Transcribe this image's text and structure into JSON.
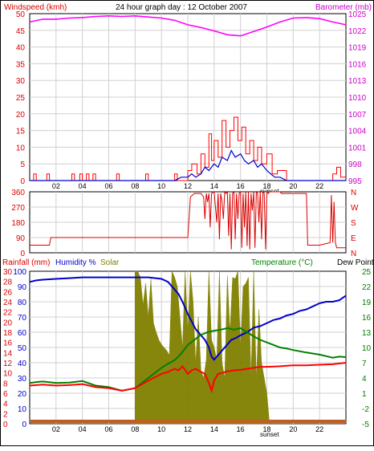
{
  "header": {
    "title": "24 hour graph day : 12 October 2007",
    "left_label": "Windspeed (kmh)",
    "right_label": "Barometer (mb)"
  },
  "colors": {
    "windspeed": "#ff0000",
    "wind_gust": "#ff0000",
    "wind_avg": "#0000cc",
    "barometer": "#ff00ff",
    "direction": "#dd0000",
    "rainfall": "#dd0000",
    "humidity": "#0000cc",
    "solar": "#808000",
    "temperature": "#008000",
    "dewpoint": "#ff0000",
    "grid": "#d0d0d0"
  },
  "time_axis": {
    "ticks": [
      "02",
      "04",
      "06",
      "08",
      "10",
      "12",
      "14",
      "16",
      "18",
      "20",
      "22"
    ],
    "sunset_label": "sunset",
    "sunset_hour": 18.2
  },
  "chart_data": [
    {
      "type": "line",
      "name": "wind-barometer",
      "left_axis": {
        "label": "Windspeed (kmh)",
        "ticks": [
          "0",
          "5",
          "10",
          "15",
          "20",
          "25",
          "30",
          "35",
          "40",
          "45",
          "50"
        ],
        "ylim": [
          0,
          50
        ]
      },
      "right_axis": {
        "label": "Barometer (mb)",
        "ticks": [
          "995",
          "998",
          "1001",
          "1004",
          "1007",
          "1010",
          "1013",
          "1016",
          "1019",
          "1022",
          "1025"
        ],
        "ylim": [
          995,
          1025
        ]
      },
      "series": [
        {
          "kind": "barometer",
          "x": [
            0,
            1,
            2,
            3,
            4,
            5,
            6,
            7,
            8,
            9,
            10,
            11,
            12,
            13,
            14,
            15,
            16,
            17,
            18,
            19,
            20,
            21,
            22,
            23,
            24
          ],
          "y": [
            1023.5,
            1024.0,
            1024.0,
            1024.2,
            1024.3,
            1024.5,
            1024.6,
            1024.5,
            1024.6,
            1024.4,
            1024.2,
            1023.8,
            1023.0,
            1022.5,
            1021.9,
            1021.2,
            1021.0,
            1021.8,
            1022.6,
            1023.5,
            1024.2,
            1024.3,
            1024.1,
            1023.5,
            1023.0
          ]
        },
        {
          "kind": "wind_gust",
          "x": [
            0,
            0.3,
            0.3,
            0.5,
            0.5,
            1.3,
            1.3,
            1.5,
            1.5,
            3.2,
            3.2,
            3.4,
            3.4,
            3.8,
            3.8,
            4.0,
            4.0,
            4.3,
            4.3,
            4.5,
            4.5,
            4.8,
            4.8,
            5.0,
            5.0,
            6.6,
            6.6,
            6.8,
            6.8,
            8.8,
            8.8,
            9.0,
            9.0,
            11.0,
            11.0,
            11.2,
            11.2,
            12.0,
            12.0,
            12.3,
            12.3,
            12.7,
            12.7,
            13.0,
            13.0,
            13.3,
            13.3,
            13.6,
            13.6,
            13.8,
            13.8,
            14.0,
            14.0,
            14.3,
            14.3,
            14.6,
            14.6,
            14.9,
            14.9,
            15.2,
            15.2,
            15.5,
            15.5,
            15.8,
            15.8,
            16.1,
            16.1,
            16.4,
            16.4,
            16.7,
            16.7,
            17.0,
            17.0,
            17.3,
            17.3,
            17.6,
            17.6,
            18.0,
            18.0,
            18.4,
            18.4,
            18.8,
            18.8,
            19.5,
            19.5,
            23.0,
            23.0,
            23.3,
            23.3,
            23.6,
            23.6,
            24
          ],
          "y": [
            0,
            0,
            2,
            2,
            0,
            0,
            2,
            2,
            0,
            0,
            2,
            2,
            0,
            0,
            2,
            2,
            0,
            0,
            2,
            2,
            0,
            0,
            2,
            2,
            0,
            0,
            2,
            2,
            0,
            0,
            2,
            2,
            0,
            0,
            2,
            2,
            0,
            0,
            3,
            3,
            5,
            5,
            2,
            2,
            8,
            8,
            4,
            4,
            14,
            14,
            6,
            6,
            12,
            12,
            7,
            7,
            18,
            18,
            10,
            10,
            15,
            15,
            19,
            19,
            12,
            12,
            16,
            16,
            8,
            8,
            12,
            12,
            6,
            6,
            10,
            10,
            5,
            5,
            8,
            8,
            2,
            2,
            3,
            3,
            0,
            0,
            2,
            2,
            4,
            4,
            1,
            1
          ]
        },
        {
          "kind": "wind_avg",
          "x": [
            0,
            10.5,
            11,
            11.5,
            12,
            12.3,
            12.6,
            13,
            13.3,
            13.6,
            14,
            14.3,
            14.6,
            15,
            15.3,
            15.6,
            16,
            16.3,
            16.6,
            17,
            17.3,
            17.6,
            18,
            18.3,
            18.6,
            19,
            19.5,
            24
          ],
          "y": [
            0,
            0,
            0,
            1,
            1,
            2,
            1,
            2,
            4,
            3,
            5,
            4,
            7,
            6,
            9,
            7,
            8,
            6,
            5,
            6,
            4,
            5,
            3,
            2,
            1,
            1,
            0,
            0
          ]
        }
      ]
    },
    {
      "type": "line",
      "name": "wind-direction",
      "left_axis": {
        "ticks": [
          "0",
          "90",
          "180",
          "270",
          "360"
        ],
        "ylim": [
          0,
          360
        ]
      },
      "right_axis": {
        "ticks": [
          "N",
          "E",
          "S",
          "W",
          "N"
        ]
      },
      "series": [
        {
          "kind": "direction",
          "x": [
            0,
            1.5,
            1.6,
            12.0,
            12.2,
            12.5,
            13,
            13.2,
            13.3,
            13.4,
            13.5,
            13.6,
            13.7,
            13.8,
            14.0,
            14.2,
            14.3,
            14.4,
            14.5,
            14.6,
            14.7,
            14.8,
            14.9,
            15.0,
            15.1,
            15.2,
            15.3,
            15.4,
            15.5,
            15.6,
            15.7,
            15.8,
            15.9,
            16.0,
            16.1,
            16.2,
            16.3,
            16.4,
            16.5,
            16.6,
            16.7,
            16.8,
            16.9,
            17.0,
            17.1,
            17.2,
            17.3,
            17.4,
            17.5,
            17.6,
            17.7,
            17.8,
            17.9,
            18.0,
            18.05,
            18.1,
            18.2,
            19.0,
            19.1,
            21.0,
            21.1,
            22.0,
            22.8,
            22.9,
            23.0,
            23.1,
            23.2,
            23.3,
            24
          ],
          "y": [
            45,
            45,
            90,
            90,
            330,
            350,
            350,
            330,
            200,
            350,
            300,
            350,
            150,
            350,
            360,
            180,
            350,
            80,
            350,
            300,
            200,
            360,
            350,
            360,
            100,
            350,
            20,
            350,
            360,
            80,
            350,
            200,
            350,
            360,
            30,
            350,
            150,
            360,
            40,
            360,
            20,
            350,
            250,
            360,
            30,
            360,
            350,
            180,
            360,
            80,
            360,
            350,
            20,
            350,
            360,
            350,
            360,
            360,
            350,
            350,
            45,
            45,
            60,
            340,
            60,
            300,
            60,
            30,
            30
          ]
        }
      ]
    },
    {
      "type": "line",
      "name": "rain-humidity-solar-temperature",
      "left_axis": {
        "rainfall_label": "Rainfall (mm)",
        "humidity_label": "Humidity %",
        "solar_label": "Solar",
        "rainfall_ticks": [
          "0",
          "2",
          "4",
          "6",
          "8",
          "10",
          "12",
          "14",
          "16",
          "18",
          "20",
          "22",
          "24",
          "26",
          "28",
          "30"
        ],
        "humidity_ticks": [
          "0",
          "10",
          "20",
          "30",
          "40",
          "50",
          "60",
          "70",
          "80",
          "90",
          "100"
        ],
        "rainfall_ylim": [
          0,
          30
        ],
        "humidity_ylim": [
          0,
          100
        ]
      },
      "right_axis": {
        "label": "Temperature (°C)",
        "dewpoint_label": "Dew Point",
        "ticks": [
          "-5",
          "-2",
          "1",
          "4",
          "7",
          "10",
          "13",
          "16",
          "19",
          "22",
          "25"
        ],
        "ylim": [
          -5,
          25
        ]
      },
      "series": [
        {
          "kind": "humidity",
          "x": [
            0,
            0.5,
            1,
            2,
            3,
            4,
            5,
            6,
            7,
            8,
            9,
            10,
            10.5,
            11,
            11.3,
            11.6,
            12,
            12.3,
            12.6,
            13,
            13.3,
            13.6,
            13.8,
            14,
            14.3,
            14.6,
            15,
            15.3,
            15.6,
            16,
            16.5,
            17,
            17.5,
            18,
            18.5,
            19,
            19.5,
            20,
            20.5,
            21,
            21.5,
            22,
            22.5,
            23,
            23.5,
            24
          ],
          "y": [
            93,
            94,
            94.5,
            95,
            95.5,
            96,
            96,
            96,
            96,
            96,
            96,
            95,
            93,
            88,
            85,
            80,
            72,
            67,
            62,
            58,
            55,
            50,
            44,
            42,
            45,
            48,
            52,
            55,
            56,
            58,
            60,
            63,
            64,
            66,
            68,
            69,
            71,
            72,
            74,
            75,
            77,
            79,
            80,
            80,
            81,
            84
          ]
        },
        {
          "kind": "temperature",
          "x": [
            0,
            0.5,
            1,
            2,
            3,
            4,
            5,
            6,
            7,
            8,
            9,
            10,
            10.5,
            11,
            11.5,
            12,
            12.5,
            13,
            13.5,
            14,
            14.5,
            15,
            15.5,
            16,
            16.5,
            17,
            17.5,
            18,
            18.5,
            19,
            19.5,
            20,
            21,
            22,
            22.5,
            23,
            23.5,
            24
          ],
          "y": [
            3.0,
            3.2,
            3.3,
            3.0,
            3.1,
            3.4,
            2.5,
            2.2,
            1.5,
            2.0,
            4.0,
            6.0,
            6.8,
            7.5,
            8.8,
            10.5,
            11.5,
            12.5,
            13.0,
            13.3,
            13.5,
            13.8,
            13.5,
            13.8,
            13.0,
            12.2,
            11.5,
            11.0,
            10.5,
            10.0,
            9.8,
            9.5,
            9.0,
            8.6,
            8.3,
            8.0,
            8.2,
            8.1
          ]
        },
        {
          "kind": "dewpoint",
          "x": [
            0,
            0.5,
            1,
            2,
            3,
            4,
            5,
            6,
            7,
            8,
            9,
            10,
            10.5,
            11,
            11.3,
            11.6,
            12,
            12.3,
            12.6,
            13,
            13.3,
            13.6,
            13.8,
            14,
            14.3,
            14.6,
            15,
            15.5,
            16,
            16.5,
            17,
            17.5,
            18,
            19,
            20,
            21,
            22,
            23,
            24
          ],
          "y": [
            2.5,
            2.6,
            2.7,
            2.5,
            2.6,
            2.8,
            2.2,
            2.0,
            1.5,
            2.0,
            3.5,
            4.8,
            5.2,
            5.8,
            5.5,
            6.3,
            4.8,
            5.5,
            5.8,
            5.2,
            4.8,
            3.0,
            1.5,
            3.5,
            4.8,
            5.0,
            5.3,
            5.5,
            5.6,
            5.8,
            6.0,
            6.2,
            6.2,
            6.3,
            6.5,
            6.5,
            6.6,
            6.7,
            7.0
          ]
        },
        {
          "kind": "solar",
          "x": [
            8.0,
            8.2,
            8.4,
            8.6,
            8.8,
            9.0,
            9.2,
            9.4,
            9.6,
            9.8,
            10.0,
            10.2,
            10.4,
            10.6,
            10.8,
            11.0,
            11.2,
            11.4,
            11.6,
            11.8,
            12.0,
            12.2,
            12.4,
            12.6,
            12.8,
            13.0,
            13.2,
            13.4,
            13.6,
            13.8,
            14.0,
            14.2,
            14.4,
            14.6,
            14.8,
            15.0,
            15.2,
            15.4,
            15.6,
            15.8,
            16.0,
            16.2,
            16.4,
            16.6,
            16.8,
            17.0,
            17.2,
            17.4,
            17.6,
            17.8,
            18.0,
            18.2
          ],
          "y": [
            100,
            100,
            96,
            78,
            92,
            70,
            95,
            66,
            60,
            55,
            52,
            50,
            48,
            45,
            100,
            96,
            90,
            70,
            50,
            100,
            60,
            100,
            80,
            40,
            70,
            35,
            30,
            42,
            100,
            55,
            50,
            42,
            100,
            40,
            30,
            97,
            60,
            96,
            95,
            100,
            50,
            90,
            92,
            96,
            30,
            100,
            28,
            75,
            40,
            30,
            20,
            0
          ]
        },
        {
          "kind": "rainfall",
          "x": [
            0,
            24
          ],
          "y": [
            0,
            0
          ]
        }
      ]
    }
  ]
}
